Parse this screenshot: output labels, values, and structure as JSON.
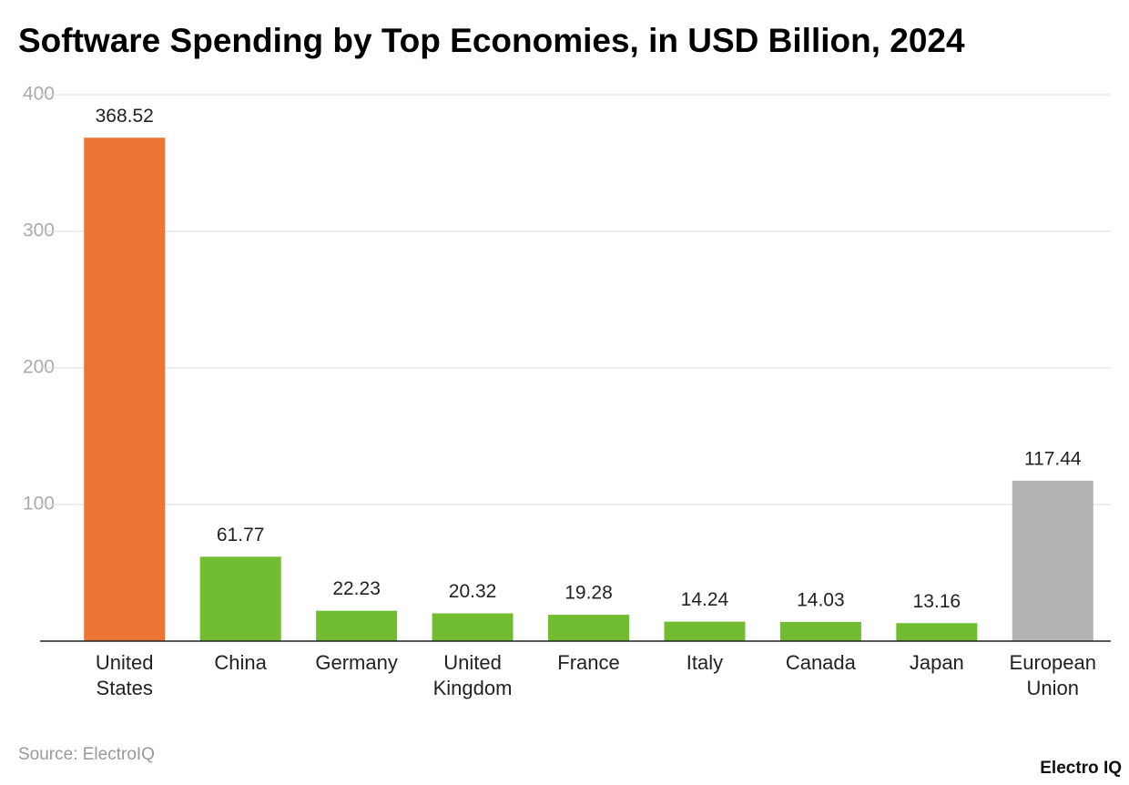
{
  "chart_data": {
    "type": "bar",
    "title": "Software Spending by Top Economies, in USD Billion, 2024",
    "categories": [
      "United States",
      "China",
      "Germany",
      "United Kingdom",
      "France",
      "Italy",
      "Canada",
      "Japan",
      "European Union"
    ],
    "values": [
      368.52,
      61.77,
      22.23,
      20.32,
      19.28,
      14.24,
      14.03,
      13.16,
      117.44
    ],
    "colors": [
      "#ec7535",
      "#72bc31",
      "#72bc31",
      "#72bc31",
      "#72bc31",
      "#72bc31",
      "#72bc31",
      "#72bc31",
      "#b3b3b1"
    ],
    "ylim": [
      0,
      400
    ],
    "yticks": [
      100,
      200,
      300,
      400
    ],
    "grid": true,
    "source": "Source: ElectroIQ",
    "brand": "Electro IQ"
  }
}
